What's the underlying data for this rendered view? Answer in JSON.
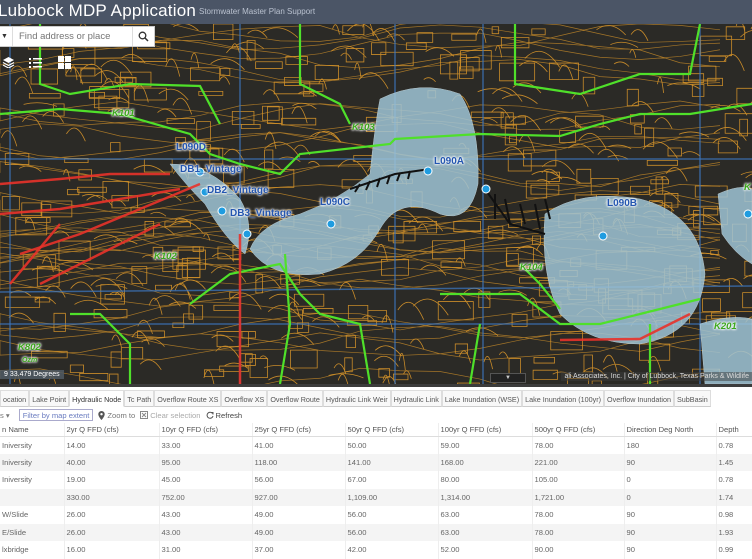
{
  "header": {
    "title": "Lubbock MDP Application",
    "subtitle": "Stormwater Master Plan Support"
  },
  "search": {
    "placeholder": "Find address or place",
    "search_icon": "magnifier"
  },
  "map": {
    "tools": [
      "layers-icon",
      "legend-icon",
      "basemap-gallery-icon"
    ],
    "labels": {
      "lakes": [
        "L090D",
        "DB1_Vintage",
        "DB2_Vintage",
        "DB3_Vintage",
        "L090C",
        "L090A",
        "L090B"
      ],
      "basins": [
        "K101",
        "K103",
        "K102",
        "K104",
        "K802",
        "K201",
        "K"
      ],
      "scale": "Ozm"
    },
    "coords": "9 33.479 Degrees",
    "attribution": "ali Associates, Inc. | City of Lubbock, Texas Parks & Wildlife",
    "colors": {
      "background": "#2b2a26",
      "contour": "#d9962a",
      "lake": "#9fc4d6",
      "basin_boundary": "#4fe02a",
      "flow": "#e8322a",
      "node": "#1f9ce0"
    }
  },
  "tabs": [
    {
      "label": "ocation"
    },
    {
      "label": "Lake Point"
    },
    {
      "label": "Hydraulic Node",
      "active": true
    },
    {
      "label": "Tc Path"
    },
    {
      "label": "Overflow Route XS"
    },
    {
      "label": "Overflow XS"
    },
    {
      "label": "Overflow Route"
    },
    {
      "label": "Hydraulic Link Weir"
    },
    {
      "label": "Hydraulic Link"
    },
    {
      "label": "Lake Inundation (WSE)"
    },
    {
      "label": "Lake Inundation (100yr)"
    },
    {
      "label": "Overflow Inundation"
    },
    {
      "label": "SubBasin"
    }
  ],
  "toolbar": {
    "options": "s ▾",
    "filter": "Filter by map extent",
    "zoom": "Zoom to",
    "clear": "Clear selection",
    "refresh": "Refresh"
  },
  "table": {
    "columns": [
      "n Name",
      "2yr Q FFD (cfs)",
      "10yr Q FFD (cfs)",
      "25yr Q FFD (cfs)",
      "50yr Q FFD (cfs)",
      "100yr Q FFD (cfs)",
      "500yr Q FFD (cfs)",
      "Direction Deg North",
      "Depth"
    ],
    "rows": [
      [
        "Iniversity",
        "14.00",
        "33.00",
        "41.00",
        "50.00",
        "59.00",
        "78.00",
        "180",
        "0.78"
      ],
      [
        "Iniversity",
        "40.00",
        "95.00",
        "118.00",
        "141.00",
        "168.00",
        "221.00",
        "90",
        "1.45"
      ],
      [
        "Iniversity",
        "19.00",
        "45.00",
        "56.00",
        "67.00",
        "80.00",
        "105.00",
        "0",
        "0.78"
      ],
      [
        "",
        "330.00",
        "752.00",
        "927.00",
        "1,109.00",
        "1,314.00",
        "1,721.00",
        "0",
        "1.74"
      ],
      [
        "W/Slide",
        "26.00",
        "43.00",
        "49.00",
        "56.00",
        "63.00",
        "78.00",
        "90",
        "0.98"
      ],
      [
        "E/Slide",
        "26.00",
        "43.00",
        "49.00",
        "56.00",
        "63.00",
        "78.00",
        "90",
        "1.93"
      ],
      [
        "lxbridge",
        "16.00",
        "31.00",
        "37.00",
        "42.00",
        "52.00",
        "90.00",
        "90",
        "0.99"
      ]
    ]
  }
}
